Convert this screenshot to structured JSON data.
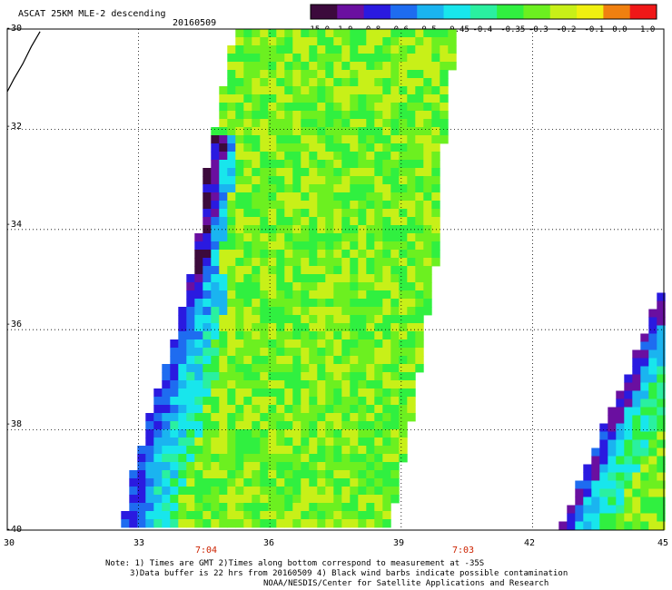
{
  "header": {
    "title": "ASCAT 25KM MLE-2 descending",
    "date": "20160509"
  },
  "colorbar": {
    "labels": [
      "-15.0",
      "-1.0",
      "-0.8",
      "-0.6",
      "-0.5",
      "-0.45",
      "-0.4",
      "-0.35",
      "-0.3",
      "-0.2",
      "-0.1",
      "0.0",
      "1.0"
    ],
    "colors": [
      "#3c0a3c",
      "#6a0fa0",
      "#2a1ae0",
      "#1e6cf0",
      "#1ab4f0",
      "#18e6ec",
      "#2af0a0",
      "#30f040",
      "#6cf020",
      "#c8f018",
      "#f0f010",
      "#f08010",
      "#f01818"
    ]
  },
  "map": {
    "lat_labels": [
      "-30",
      "-32",
      "-34",
      "-36",
      "-38",
      "-40"
    ],
    "lon_labels": [
      "30",
      "33",
      "36",
      "39",
      "42",
      "45"
    ],
    "lat_range": [
      -40,
      -30
    ],
    "lon_range": [
      30,
      45
    ],
    "time_labels": [
      {
        "lon": 34.5,
        "text": "7:04"
      },
      {
        "lon": 39.5,
        "text": "7:03"
      }
    ],
    "swaths": [
      {
        "name": "main-swath",
        "polygon_lonlat": [
          [
            35.2,
            -30.0
          ],
          [
            40.3,
            -30.0
          ],
          [
            40.0,
            -31.8
          ],
          [
            39.9,
            -34.0
          ],
          [
            39.3,
            -37.6
          ],
          [
            38.7,
            -40.0
          ],
          [
            32.6,
            -40.0
          ],
          [
            32.9,
            -38.8
          ],
          [
            33.5,
            -37.0
          ],
          [
            34.0,
            -35.6
          ],
          [
            34.4,
            -34.0
          ],
          [
            34.6,
            -32.5
          ]
        ]
      },
      {
        "name": "east-swath",
        "polygon_lonlat": [
          [
            45.0,
            -35.1
          ],
          [
            45.0,
            -40.0
          ],
          [
            42.6,
            -40.0
          ],
          [
            43.3,
            -38.6
          ],
          [
            44.2,
            -36.8
          ]
        ]
      }
    ],
    "coastline_lonlat": [
      [
        30.0,
        -31.25
      ],
      [
        30.15,
        -31.0
      ],
      [
        30.35,
        -30.7
      ],
      [
        30.55,
        -30.35
      ],
      [
        30.75,
        -30.05
      ]
    ]
  },
  "footer": {
    "note_line1": "Note: 1) Times are GMT 2)Times along bottom correspond to measurement at -35S",
    "note_line2": "3)Data buffer is 22 hrs from 20160509 4) Black wind barbs indicate possible contamination",
    "note_line3": "NOAA/NESDIS/Center for Satellite Applications and Research"
  }
}
